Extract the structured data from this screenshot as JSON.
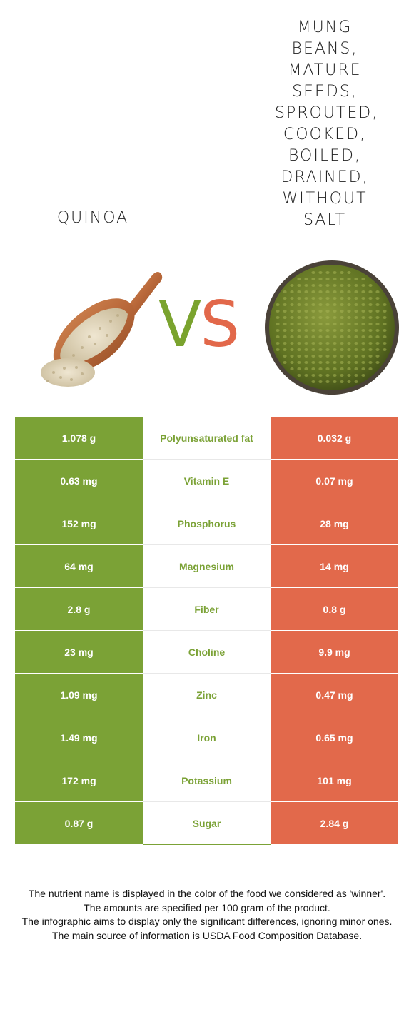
{
  "left_food": {
    "name": "Quinoa",
    "image_icon": "quinoa-scoop-icon",
    "color": "#7ba236"
  },
  "right_food": {
    "name": "Mung\nbeans,\nmature\nseeds,\nsprouted,\ncooked,\nboiled,\ndrained,\nwithout\nsalt",
    "image_icon": "mung-beans-bowl-icon",
    "color": "#e2694b"
  },
  "vs": {
    "v": "V",
    "s": "S"
  },
  "rows": [
    {
      "left": "1.078 g",
      "nutrient": "Polyunsaturated fat",
      "right": "0.032 g"
    },
    {
      "left": "0.63 mg",
      "nutrient": "Vitamin E",
      "right": "0.07 mg"
    },
    {
      "left": "152 mg",
      "nutrient": "Phosphorus",
      "right": "28 mg"
    },
    {
      "left": "64 mg",
      "nutrient": "Magnesium",
      "right": "14 mg"
    },
    {
      "left": "2.8 g",
      "nutrient": "Fiber",
      "right": "0.8 g"
    },
    {
      "left": "23 mg",
      "nutrient": "Choline",
      "right": "9.9 mg"
    },
    {
      "left": "1.09 mg",
      "nutrient": "Zinc",
      "right": "0.47 mg"
    },
    {
      "left": "1.49 mg",
      "nutrient": "Iron",
      "right": "0.65 mg"
    },
    {
      "left": "172 mg",
      "nutrient": "Potassium",
      "right": "101 mg"
    },
    {
      "left": "0.87 g",
      "nutrient": "Sugar",
      "right": "2.84 g"
    }
  ],
  "footer": {
    "line1": "The nutrient name is displayed in the color of the food we considered as 'winner'.",
    "line2": "The amounts are specified per 100 gram of the product.",
    "line3": "The infographic aims to display only the significant differences, ignoring minor ones.",
    "line4": "The main source of information is USDA Food Composition Database."
  }
}
